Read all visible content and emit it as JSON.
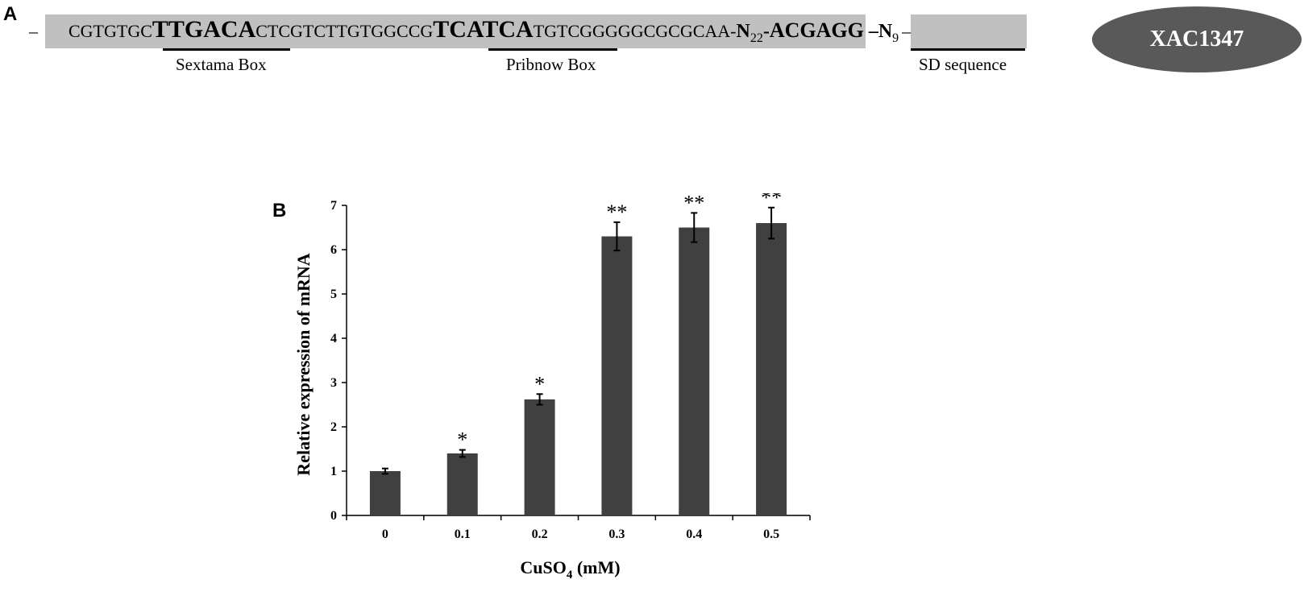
{
  "panel_a": {
    "letter": "A",
    "leading_dash": "–",
    "seq_part1": "CGTGTGC",
    "sextama_motif": "TTGACA",
    "seq_part2": "CTCGTCTTGTGGCCG",
    "pribnow_motif": "TCATCA",
    "seq_part3": "TGTCGGGGGCGCGCAA-",
    "n1_base": "N",
    "n1_sub": "22",
    "n1_dash": "-",
    "sd_motif": "ACGAGG",
    "n2_prefix": "–N",
    "n2_sub": "9",
    "n2_dash": "–",
    "sextama_label": "Sextama Box",
    "pribnow_label": "Pribnow Box",
    "sd_label": "SD sequence",
    "gene_name": "XAC1347"
  },
  "panel_b": {
    "letter": "B"
  },
  "chart_data": {
    "type": "bar",
    "title": "",
    "xlabel_main": "CuSO",
    "xlabel_sub": "4",
    "xlabel_unit": " (mM)",
    "ylabel": "Relative expression of mRNA",
    "categories": [
      "0",
      "0.1",
      "0.2",
      "0.3",
      "0.4",
      "0.5"
    ],
    "values": [
      1.0,
      1.4,
      2.62,
      6.3,
      6.5,
      6.6
    ],
    "errors": [
      0.06,
      0.08,
      0.12,
      0.32,
      0.33,
      0.35
    ],
    "significance": [
      "",
      "*",
      "*",
      "**",
      "**",
      "**"
    ],
    "ylim": [
      0,
      7
    ],
    "yticks": [
      "0",
      "1",
      "2",
      "3",
      "4",
      "5",
      "6",
      "7"
    ],
    "bar_color": "#404040",
    "grid": false,
    "legend": "none"
  }
}
